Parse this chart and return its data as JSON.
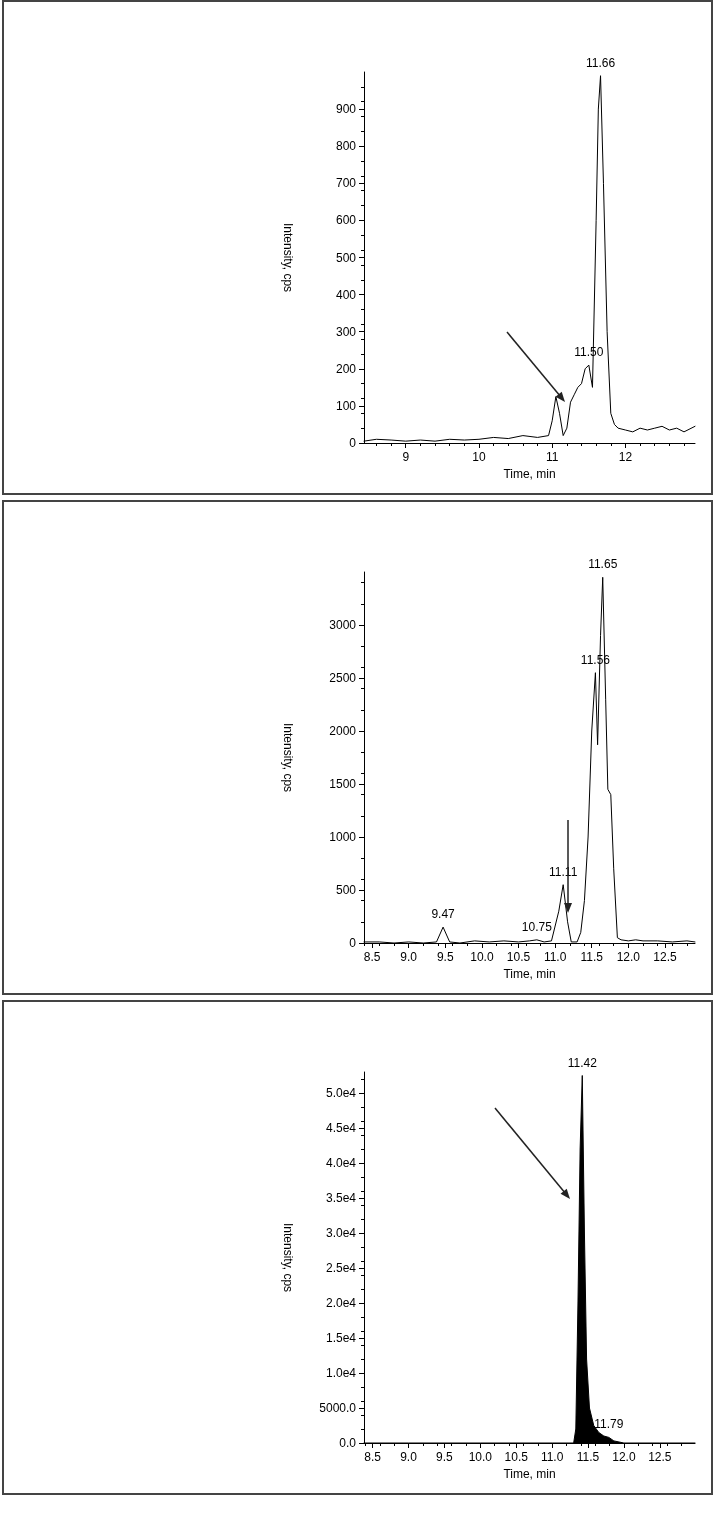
{
  "chart_data": [
    {
      "type": "line",
      "xlabel": "Time, min",
      "ylabel": "Intensity, cps",
      "xlim": [
        8.43,
        12.95
      ],
      "ylim": [
        0,
        1000
      ],
      "xticks": [
        9,
        10,
        11,
        12
      ],
      "yticks": [
        0,
        100,
        200,
        300,
        400,
        500,
        600,
        700,
        800,
        900
      ],
      "grid": false,
      "marker": "none",
      "series": [
        {
          "color": "#000000",
          "x": [
            8.43,
            8.6,
            8.8,
            9.0,
            9.2,
            9.4,
            9.6,
            9.8,
            10.0,
            10.2,
            10.4,
            10.6,
            10.8,
            10.95,
            11.0,
            11.05,
            11.1,
            11.15,
            11.2,
            11.25,
            11.3,
            11.35,
            11.4,
            11.45,
            11.5,
            11.55,
            11.6,
            11.63,
            11.66,
            11.7,
            11.75,
            11.8,
            11.85,
            11.9,
            12.0,
            12.1,
            12.2,
            12.3,
            12.4,
            12.5,
            12.6,
            12.7,
            12.8,
            12.95
          ],
          "values": [
            5,
            10,
            8,
            5,
            8,
            5,
            10,
            8,
            10,
            15,
            12,
            20,
            15,
            20,
            60,
            125,
            80,
            20,
            40,
            110,
            130,
            150,
            160,
            200,
            210,
            150,
            600,
            900,
            990,
            700,
            300,
            80,
            50,
            40,
            35,
            30,
            40,
            35,
            40,
            45,
            35,
            40,
            30,
            45
          ]
        }
      ],
      "annotations": [
        {
          "text": "11.66",
          "x": 11.66,
          "y": 990
        },
        {
          "text": "11.50",
          "x": 11.5,
          "y": 210
        }
      ]
    },
    {
      "type": "line",
      "xlabel": "Time, min",
      "ylabel": "Intensity, cps",
      "xlim": [
        8.39,
        12.91
      ],
      "ylim": [
        0,
        3500
      ],
      "xticks": [
        8.5,
        {
          "value": 9,
          "label": "9.0"
        },
        9.5,
        {
          "value": 10,
          "label": "10.0"
        },
        10.5,
        {
          "value": 11,
          "label": "11.0"
        },
        11.5,
        {
          "value": 12,
          "label": "12.0"
        },
        12.5
      ],
      "yticks": [
        0,
        500,
        1000,
        1500,
        2000,
        2500,
        3000
      ],
      "grid": false,
      "marker": "none",
      "series": [
        {
          "color": "#000000",
          "x": [
            8.39,
            8.6,
            8.8,
            9.0,
            9.2,
            9.38,
            9.47,
            9.56,
            9.7,
            9.9,
            10.1,
            10.3,
            10.5,
            10.65,
            10.75,
            10.85,
            10.95,
            11.05,
            11.11,
            11.17,
            11.22,
            11.3,
            11.35,
            11.4,
            11.45,
            11.5,
            11.55,
            11.58,
            11.62,
            11.65,
            11.69,
            11.72,
            11.76,
            11.8,
            11.85,
            11.9,
            12.0,
            12.1,
            12.2,
            12.4,
            12.6,
            12.8,
            12.91
          ],
          "values": [
            10,
            10,
            0,
            10,
            0,
            10,
            150,
            10,
            0,
            20,
            10,
            20,
            10,
            20,
            30,
            10,
            20,
            300,
            550,
            200,
            10,
            10,
            100,
            400,
            1000,
            2000,
            2550,
            1870,
            2900,
            3450,
            2300,
            1450,
            1400,
            700,
            50,
            30,
            20,
            30,
            20,
            20,
            10,
            20,
            10
          ]
        }
      ],
      "annotations": [
        {
          "text": "9.47",
          "x": 9.47,
          "y": 150
        },
        {
          "text": "10.75",
          "x": 10.75,
          "y": 30
        },
        {
          "text": "11.11",
          "x": 11.11,
          "y": 550
        },
        {
          "text": "11.56",
          "x": 11.55,
          "y": 2550
        },
        {
          "text": "11.65",
          "x": 11.65,
          "y": 3450
        }
      ]
    },
    {
      "type": "area",
      "xlabel": "Time, min",
      "ylabel": "Intensity, cps",
      "xlim": [
        8.38,
        12.99
      ],
      "ylim": [
        0,
        53000
      ],
      "xticks": [
        8.5,
        {
          "value": 9,
          "label": "9.0"
        },
        9.5,
        {
          "value": 10,
          "label": "10.0"
        },
        10.5,
        {
          "value": 11,
          "label": "11.0"
        },
        11.5,
        {
          "value": 12,
          "label": "12.0"
        },
        12.5
      ],
      "yticks": [
        {
          "value": 0,
          "label": "0.0"
        },
        {
          "value": 5000,
          "label": "5000.0"
        },
        {
          "value": 10000,
          "label": "1.0e4"
        },
        {
          "value": 15000,
          "label": "1.5e4"
        },
        {
          "value": 20000,
          "label": "2.0e4"
        },
        {
          "value": 25000,
          "label": "2.5e4"
        },
        {
          "value": 30000,
          "label": "3.0e4"
        },
        {
          "value": 35000,
          "label": "3.5e4"
        },
        {
          "value": 40000,
          "label": "4.0e4"
        },
        {
          "value": 45000,
          "label": "4.5e4"
        },
        {
          "value": 50000,
          "label": "5.0e4"
        }
      ],
      "grid": false,
      "marker": "none",
      "series": [
        {
          "color": "#000000",
          "x": [
            8.38,
            9.0,
            10.0,
            11.0,
            11.3,
            11.33,
            11.36,
            11.39,
            11.42,
            11.45,
            11.48,
            11.52,
            11.58,
            11.65,
            11.72,
            11.79,
            11.86,
            12.0,
            12.5,
            12.99
          ],
          "values": [
            0,
            0,
            0,
            0,
            0,
            2000,
            20000,
            42000,
            52500,
            30000,
            12000,
            5000,
            2500,
            1500,
            1000,
            800,
            300,
            0,
            0,
            0
          ]
        }
      ],
      "annotations": [
        {
          "text": "11.42",
          "x": 11.42,
          "y": 52500
        },
        {
          "text": "11.79",
          "x": 11.79,
          "y": 800
        }
      ]
    }
  ]
}
